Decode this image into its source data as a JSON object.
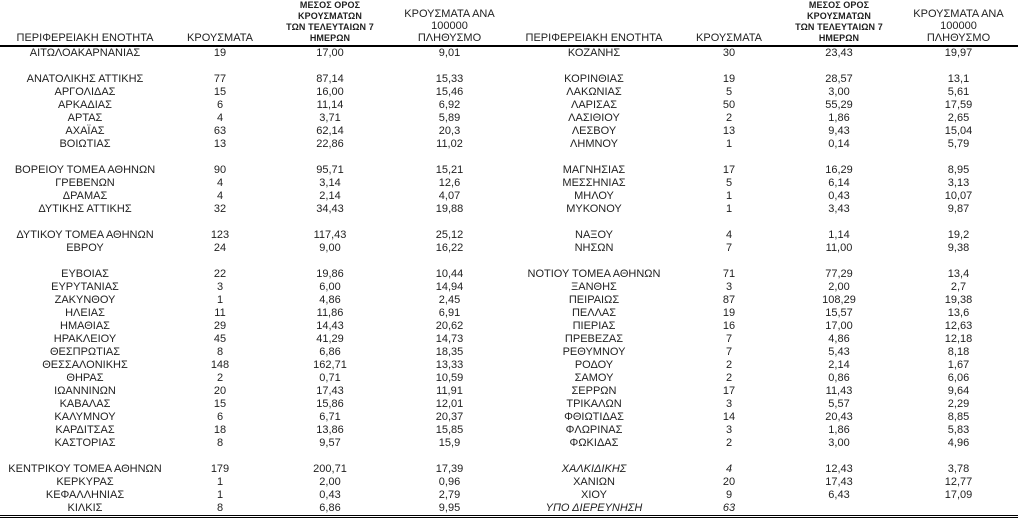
{
  "page": {
    "background_color": "#ffffff",
    "text_color": "#1f1f1f",
    "rule_color": "#000000"
  },
  "tables": [
    {
      "columns": {
        "region": "ΠΕΡΙΦΕΡΕΙΑΚΗ ΕΝΟΤΗΤΑ",
        "cases": "ΚΡΟΥΣΜΑΤΑ",
        "avg7": "ΜΕΣΟΣ ΟΡΟΣ ΚΡΟΥΣΜΑΤΩΝ\nΤΩΝ ΤΕΛΕΥΤΑΙΩΝ 7\nΗΜΕΡΩΝ",
        "per100k": "ΚΡΟΥΣΜΑΤΑ ΑΝΑ 100000\nΠΛΗΘΥΣΜΟ"
      },
      "rows": [
        {
          "name": "ΑΙΤΩΛΟΑΚΑΡΝΑΝΙΑΣ",
          "cases": "19",
          "avg7": "17,00",
          "per100k": "9,01"
        },
        {
          "spacer": true
        },
        {
          "name": "ΑΝΑΤΟΛΙΚΗΣ ΑΤΤΙΚΗΣ",
          "cases": "77",
          "avg7": "87,14",
          "per100k": "15,33"
        },
        {
          "name": "ΑΡΓΟΛΙΔΑΣ",
          "cases": "15",
          "avg7": "16,00",
          "per100k": "15,46"
        },
        {
          "name": "ΑΡΚΑΔΙΑΣ",
          "cases": "6",
          "avg7": "11,14",
          "per100k": "6,92"
        },
        {
          "name": "ΑΡΤΑΣ",
          "cases": "4",
          "avg7": "3,71",
          "per100k": "5,89"
        },
        {
          "name": "ΑΧΑΪΑΣ",
          "cases": "63",
          "avg7": "62,14",
          "per100k": "20,3"
        },
        {
          "name": "ΒΟΙΩΤΙΑΣ",
          "cases": "13",
          "avg7": "22,86",
          "per100k": "11,02"
        },
        {
          "spacer": true
        },
        {
          "name": "ΒΟΡΕΙΟΥ ΤΟΜΕΑ ΑΘΗΝΩΝ",
          "cases": "90",
          "avg7": "95,71",
          "per100k": "15,21"
        },
        {
          "name": "ΓΡΕΒΕΝΩΝ",
          "cases": "4",
          "avg7": "3,14",
          "per100k": "12,6"
        },
        {
          "name": "ΔΡΑΜΑΣ",
          "cases": "4",
          "avg7": "2,14",
          "per100k": "4,07"
        },
        {
          "name": "ΔΥΤΙΚΗΣ ΑΤΤΙΚΗΣ",
          "cases": "32",
          "avg7": "34,43",
          "per100k": "19,88"
        },
        {
          "spacer": true
        },
        {
          "name": "ΔΥΤΙΚΟΥ ΤΟΜΕΑ ΑΘΗΝΩΝ",
          "cases": "123",
          "avg7": "117,43",
          "per100k": "25,12"
        },
        {
          "name": "ΕΒΡΟΥ",
          "cases": "24",
          "avg7": "9,00",
          "per100k": "16,22"
        },
        {
          "spacer": true
        },
        {
          "name": "ΕΥΒΟΙΑΣ",
          "cases": "22",
          "avg7": "19,86",
          "per100k": "10,44"
        },
        {
          "name": "ΕΥΡΥΤΑΝΙΑΣ",
          "cases": "3",
          "avg7": "6,00",
          "per100k": "14,94"
        },
        {
          "name": "ΖΑΚΥΝΘΟΥ",
          "cases": "1",
          "avg7": "4,86",
          "per100k": "2,45"
        },
        {
          "name": "ΗΛΕΙΑΣ",
          "cases": "11",
          "avg7": "11,86",
          "per100k": "6,91"
        },
        {
          "name": "ΗΜΑΘΙΑΣ",
          "cases": "29",
          "avg7": "14,43",
          "per100k": "20,62"
        },
        {
          "name": "ΗΡΑΚΛΕΙΟΥ",
          "cases": "45",
          "avg7": "41,29",
          "per100k": "14,73"
        },
        {
          "name": "ΘΕΣΠΡΩΤΙΑΣ",
          "cases": "8",
          "avg7": "6,86",
          "per100k": "18,35"
        },
        {
          "name": "ΘΕΣΣΑΛΟΝΙΚΗΣ",
          "cases": "148",
          "avg7": "162,71",
          "per100k": "13,33"
        },
        {
          "name": "ΘΗΡΑΣ",
          "cases": "2",
          "avg7": "0,71",
          "per100k": "10,59"
        },
        {
          "name": "ΙΩΑΝΝΙΝΩΝ",
          "cases": "20",
          "avg7": "17,43",
          "per100k": "11,91"
        },
        {
          "name": "ΚΑΒΑΛΑΣ",
          "cases": "15",
          "avg7": "15,86",
          "per100k": "12,01"
        },
        {
          "name": "ΚΑΛΥΜΝΟΥ",
          "cases": "6",
          "avg7": "6,71",
          "per100k": "20,37"
        },
        {
          "name": "ΚΑΡΔΙΤΣΑΣ",
          "cases": "18",
          "avg7": "13,86",
          "per100k": "15,85"
        },
        {
          "name": "ΚΑΣΤΟΡΙΑΣ",
          "cases": "8",
          "avg7": "9,57",
          "per100k": "15,9"
        },
        {
          "spacer": true
        },
        {
          "name": "ΚΕΝΤΡΙΚΟΥ ΤΟΜΕΑ ΑΘΗΝΩΝ",
          "cases": "179",
          "avg7": "200,71",
          "per100k": "17,39"
        },
        {
          "name": "ΚΕΡΚΥΡΑΣ",
          "cases": "1",
          "avg7": "2,00",
          "per100k": "0,96"
        },
        {
          "name": "ΚΕΦΑΛΛΗΝΙΑΣ",
          "cases": "1",
          "avg7": "0,43",
          "per100k": "2,79"
        },
        {
          "name": "ΚΙΛΚΙΣ",
          "cases": "8",
          "avg7": "6,86",
          "per100k": "9,95"
        }
      ]
    },
    {
      "columns": {
        "region": "ΠΕΡΙΦΕΡΕΙΑΚΗ ΕΝΟΤΗΤΑ",
        "cases": "ΚΡΟΥΣΜΑΤΑ",
        "avg7": "ΜΕΣΟΣ ΟΡΟΣ ΚΡΟΥΣΜΑΤΩΝ\nΤΩΝ ΤΕΛΕΥΤΑΙΩΝ 7\nΗΜΕΡΩΝ",
        "per100k": "ΚΡΟΥΣΜΑΤΑ ΑΝΑ 100000\nΠΛΗΘΥΣΜΟ"
      },
      "rows": [
        {
          "name": "ΚΟΖΑΝΗΣ",
          "cases": "30",
          "avg7": "23,43",
          "per100k": "19,97"
        },
        {
          "spacer": true
        },
        {
          "name": "ΚΟΡΙΝΘΙΑΣ",
          "cases": "19",
          "avg7": "28,57",
          "per100k": "13,1"
        },
        {
          "name": "ΛΑΚΩΝΙΑΣ",
          "cases": "5",
          "avg7": "3,00",
          "per100k": "5,61"
        },
        {
          "name": "ΛΑΡΙΣΑΣ",
          "cases": "50",
          "avg7": "55,29",
          "per100k": "17,59"
        },
        {
          "name": "ΛΑΣΙΘΙΟΥ",
          "cases": "2",
          "avg7": "1,86",
          "per100k": "2,65"
        },
        {
          "name": "ΛΕΣΒΟΥ",
          "cases": "13",
          "avg7": "9,43",
          "per100k": "15,04"
        },
        {
          "name": "ΛΗΜΝΟΥ",
          "cases": "1",
          "avg7": "0,14",
          "per100k": "5,79"
        },
        {
          "spacer": true
        },
        {
          "name": "ΜΑΓΝΗΣΙΑΣ",
          "cases": "17",
          "avg7": "16,29",
          "per100k": "8,95"
        },
        {
          "name": "ΜΕΣΣΗΝΙΑΣ",
          "cases": "5",
          "avg7": "6,14",
          "per100k": "3,13"
        },
        {
          "name": "ΜΗΛΟΥ",
          "cases": "1",
          "avg7": "0,43",
          "per100k": "10,07"
        },
        {
          "name": "ΜΥΚΟΝΟΥ",
          "cases": "1",
          "avg7": "3,43",
          "per100k": "9,87"
        },
        {
          "spacer": true
        },
        {
          "name": "ΝΑΞΟΥ",
          "cases": "4",
          "avg7": "1,14",
          "per100k": "19,2"
        },
        {
          "name": "ΝΗΣΩΝ",
          "cases": "7",
          "avg7": "11,00",
          "per100k": "9,38"
        },
        {
          "spacer": true
        },
        {
          "name": "ΝΟΤΙΟΥ ΤΟΜΕΑ ΑΘΗΝΩΝ",
          "cases": "71",
          "avg7": "77,29",
          "per100k": "13,4"
        },
        {
          "name": "ΞΑΝΘΗΣ",
          "cases": "3",
          "avg7": "2,00",
          "per100k": "2,7"
        },
        {
          "name": "ΠΕΙΡΑΙΩΣ",
          "cases": "87",
          "avg7": "108,29",
          "per100k": "19,38"
        },
        {
          "name": "ΠΕΛΛΑΣ",
          "cases": "19",
          "avg7": "15,57",
          "per100k": "13,6"
        },
        {
          "name": "ΠΙΕΡΙΑΣ",
          "cases": "16",
          "avg7": "17,00",
          "per100k": "12,63"
        },
        {
          "name": "ΠΡΕΒΕΖΑΣ",
          "cases": "7",
          "avg7": "4,86",
          "per100k": "12,18"
        },
        {
          "name": "ΡΕΘΥΜΝΟΥ",
          "cases": "7",
          "avg7": "5,43",
          "per100k": "8,18"
        },
        {
          "name": "ΡΟΔΟΥ",
          "cases": "2",
          "avg7": "2,14",
          "per100k": "1,67"
        },
        {
          "name": "ΣΑΜΟΥ",
          "cases": "2",
          "avg7": "0,86",
          "per100k": "6,06"
        },
        {
          "name": "ΣΕΡΡΩΝ",
          "cases": "17",
          "avg7": "11,43",
          "per100k": "9,64"
        },
        {
          "name": "ΤΡΙΚΑΛΩΝ",
          "cases": "3",
          "avg7": "5,57",
          "per100k": "2,29"
        },
        {
          "name": "ΦΘΙΩΤΙΔΑΣ",
          "cases": "14",
          "avg7": "20,43",
          "per100k": "8,85"
        },
        {
          "name": "ΦΛΩΡΙΝΑΣ",
          "cases": "3",
          "avg7": "1,86",
          "per100k": "5,83"
        },
        {
          "name": "ΦΩΚΙΔΑΣ",
          "cases": "2",
          "avg7": "3,00",
          "per100k": "4,96"
        },
        {
          "spacer": true
        },
        {
          "name": "ΧΑΛΚΙΔΙΚΗΣ",
          "cases": "4",
          "avg7": "12,43",
          "per100k": "3,78",
          "italic": true
        },
        {
          "name": "ΧΑΝΙΩΝ",
          "cases": "20",
          "avg7": "17,43",
          "per100k": "12,77"
        },
        {
          "name": "ΧΙΟΥ",
          "cases": "9",
          "avg7": "6,43",
          "per100k": "17,09"
        },
        {
          "name": "ΥΠΟ ΔΙΕΡΕΥΝΗΣΗ",
          "cases": "63",
          "avg7": "",
          "per100k": "",
          "italic": true
        }
      ]
    }
  ]
}
